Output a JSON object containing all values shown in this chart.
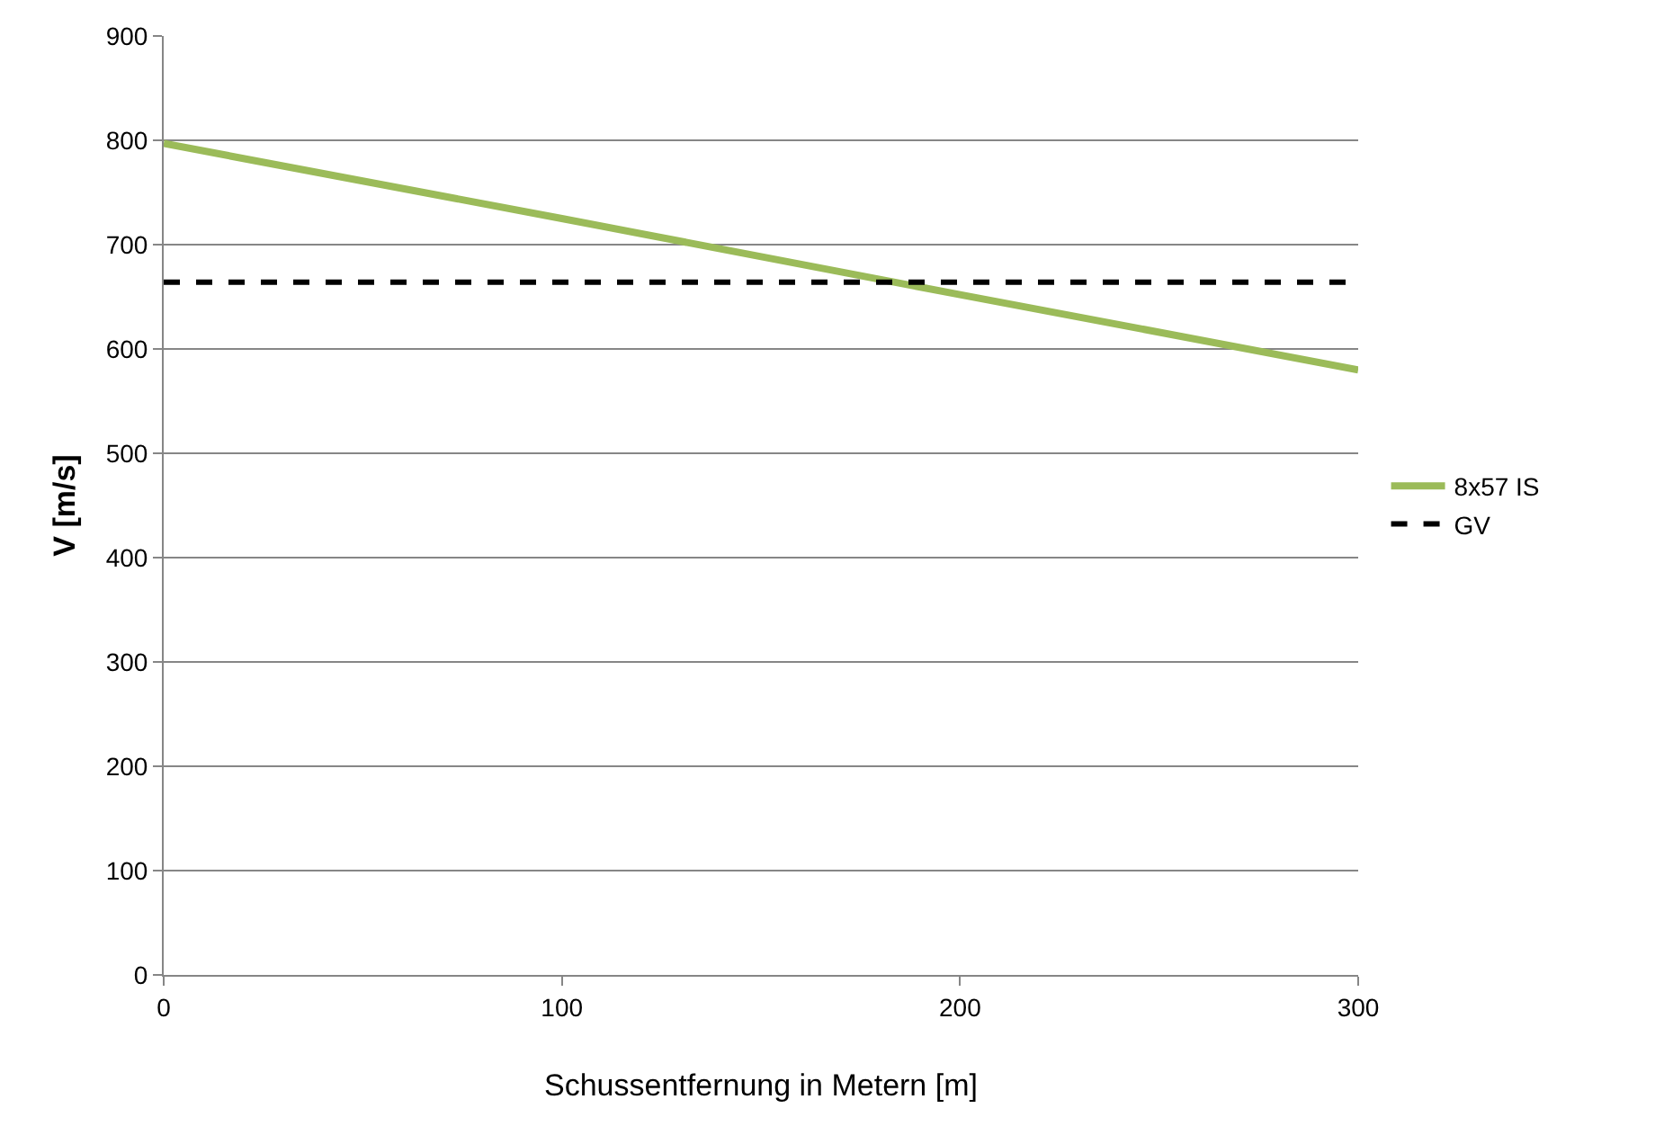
{
  "chart_data": {
    "type": "line",
    "xlabel": "Schussentfernung in Metern [m]",
    "ylabel": "V [m/s]",
    "x": [
      0,
      100,
      200,
      300
    ],
    "series": [
      {
        "name": "8x57 IS",
        "color": "#9bbb59",
        "values": [
          797,
          725,
          652,
          580
        ],
        "line_style": "solid"
      },
      {
        "name": "GV",
        "color": "#000000",
        "values": [
          664,
          664,
          664,
          664
        ],
        "line_style": "dashed"
      }
    ],
    "xlim": [
      0,
      300
    ],
    "xticks": [
      0,
      100,
      200,
      300
    ],
    "ylim": [
      0,
      900
    ],
    "yticks": [
      0,
      100,
      200,
      300,
      400,
      500,
      600,
      700,
      800,
      900
    ],
    "grid": "y",
    "legend": "right",
    "marker": "none"
  }
}
